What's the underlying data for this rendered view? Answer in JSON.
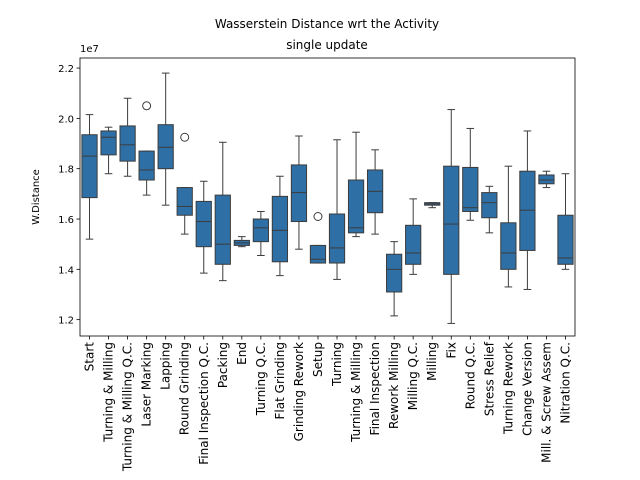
{
  "chart_data": {
    "type": "box",
    "title_lines": [
      "Wasserstein Distance wrt the Activity",
      "single update"
    ],
    "ylabel": "W.Distance",
    "exponent_label": "1e7",
    "ylim": [
      1.135,
      2.24
    ],
    "yticks": [
      1.2,
      1.4,
      1.6,
      1.8,
      2.0,
      2.2
    ],
    "ytick_labels": [
      "1.2",
      "1.4",
      "1.6",
      "1.8",
      "2.0",
      "2.2"
    ],
    "box_color": "#2e6fa5",
    "categories": [
      {
        "label": "Start",
        "stats": [
          1.52,
          1.685,
          1.85,
          1.935,
          2.015
        ],
        "outliers": []
      },
      {
        "label": "Turning & Milling",
        "stats": [
          1.78,
          1.855,
          1.925,
          1.95,
          1.965
        ],
        "outliers": []
      },
      {
        "label": "Turning & Milling Q.C.",
        "stats": [
          1.77,
          1.83,
          1.895,
          1.97,
          2.08
        ],
        "outliers": []
      },
      {
        "label": "Laser Marking",
        "stats": [
          1.695,
          1.755,
          1.795,
          1.87,
          1.87
        ],
        "outliers": [
          2.05
        ]
      },
      {
        "label": "Lapping",
        "stats": [
          1.655,
          1.8,
          1.885,
          1.975,
          2.18
        ],
        "outliers": []
      },
      {
        "label": "Round Grinding",
        "stats": [
          1.54,
          1.615,
          1.65,
          1.725,
          1.725
        ],
        "outliers": [
          1.925
        ]
      },
      {
        "label": "Final Inspection Q.C.",
        "stats": [
          1.385,
          1.49,
          1.59,
          1.67,
          1.75
        ],
        "outliers": []
      },
      {
        "label": "Packing",
        "stats": [
          1.355,
          1.42,
          1.5,
          1.695,
          1.905
        ],
        "outliers": []
      },
      {
        "label": "End",
        "stats": [
          1.49,
          1.495,
          1.505,
          1.515,
          1.53
        ],
        "outliers": []
      },
      {
        "label": "Turning Q.C.",
        "stats": [
          1.455,
          1.51,
          1.565,
          1.6,
          1.63
        ],
        "outliers": []
      },
      {
        "label": "Flat Grinding",
        "stats": [
          1.375,
          1.43,
          1.555,
          1.69,
          1.77
        ],
        "outliers": []
      },
      {
        "label": "Grinding Rework",
        "stats": [
          1.48,
          1.59,
          1.705,
          1.815,
          1.93
        ],
        "outliers": []
      },
      {
        "label": "Setup",
        "stats": [
          1.425,
          1.425,
          1.44,
          1.495,
          1.495
        ],
        "outliers": [
          1.61
        ]
      },
      {
        "label": "Turning",
        "stats": [
          1.36,
          1.425,
          1.485,
          1.62,
          1.915
        ],
        "outliers": []
      },
      {
        "label": "Turning & Milling",
        "stats": [
          1.53,
          1.545,
          1.565,
          1.755,
          1.945
        ],
        "outliers": []
      },
      {
        "label": "Final Inspection",
        "stats": [
          1.54,
          1.625,
          1.71,
          1.795,
          1.875
        ],
        "outliers": []
      },
      {
        "label": "Rework Milling",
        "stats": [
          1.215,
          1.31,
          1.4,
          1.46,
          1.51
        ],
        "outliers": []
      },
      {
        "label": "Milling Q.C.",
        "stats": [
          1.38,
          1.42,
          1.465,
          1.575,
          1.68
        ],
        "outliers": []
      },
      {
        "label": "Milling",
        "stats": [
          1.645,
          1.655,
          1.66,
          1.665,
          1.665
        ],
        "outliers": []
      },
      {
        "label": "Fix",
        "stats": [
          1.185,
          1.38,
          1.58,
          1.81,
          2.035
        ],
        "outliers": []
      },
      {
        "label": "Round  Q.C.",
        "stats": [
          1.595,
          1.63,
          1.645,
          1.805,
          1.96
        ],
        "outliers": []
      },
      {
        "label": "Stress Relief",
        "stats": [
          1.545,
          1.605,
          1.665,
          1.705,
          1.73
        ],
        "outliers": []
      },
      {
        "label": "Turning Rework",
        "stats": [
          1.33,
          1.4,
          1.465,
          1.585,
          1.81
        ],
        "outliers": []
      },
      {
        "label": "Change Version",
        "stats": [
          1.32,
          1.475,
          1.635,
          1.79,
          1.95
        ],
        "outliers": []
      },
      {
        "label": "Mill. & Screw Assem",
        "stats": [
          1.725,
          1.74,
          1.755,
          1.775,
          1.79
        ],
        "outliers": []
      },
      {
        "label": "Nitration Q.C.",
        "stats": [
          1.4,
          1.42,
          1.445,
          1.615,
          1.78
        ],
        "outliers": []
      }
    ]
  }
}
